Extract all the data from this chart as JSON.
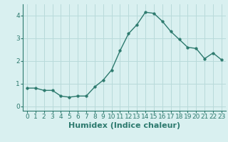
{
  "x": [
    0,
    1,
    2,
    3,
    4,
    5,
    6,
    7,
    8,
    9,
    10,
    11,
    12,
    13,
    14,
    15,
    16,
    17,
    18,
    19,
    20,
    21,
    22,
    23
  ],
  "y": [
    0.8,
    0.8,
    0.7,
    0.7,
    0.45,
    0.4,
    0.45,
    0.45,
    0.85,
    1.15,
    1.6,
    2.45,
    3.2,
    3.6,
    4.15,
    4.1,
    3.75,
    3.3,
    2.95,
    2.6,
    2.55,
    2.1,
    2.35,
    2.05
  ],
  "xlabel": "Humidex (Indice chaleur)",
  "xlim": [
    -0.5,
    23.5
  ],
  "ylim": [
    -0.2,
    4.5
  ],
  "yticks": [
    0,
    1,
    2,
    3,
    4
  ],
  "xticks": [
    0,
    1,
    2,
    3,
    4,
    5,
    6,
    7,
    8,
    9,
    10,
    11,
    12,
    13,
    14,
    15,
    16,
    17,
    18,
    19,
    20,
    21,
    22,
    23
  ],
  "line_color": "#2d7a6e",
  "marker_size": 2.5,
  "bg_color": "#d9f0f0",
  "grid_color": "#b8dada",
  "xlabel_fontsize": 8,
  "tick_fontsize": 6.5
}
